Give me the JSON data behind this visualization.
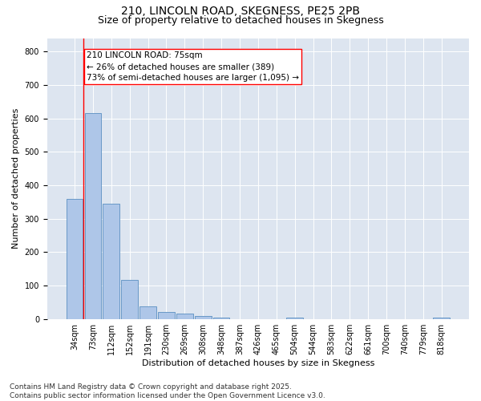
{
  "title1": "210, LINCOLN ROAD, SKEGNESS, PE25 2PB",
  "title2": "Size of property relative to detached houses in Skegness",
  "xlabel": "Distribution of detached houses by size in Skegness",
  "ylabel": "Number of detached properties",
  "categories": [
    "34sqm",
    "73sqm",
    "112sqm",
    "152sqm",
    "191sqm",
    "230sqm",
    "269sqm",
    "308sqm",
    "348sqm",
    "387sqm",
    "426sqm",
    "465sqm",
    "504sqm",
    "544sqm",
    "583sqm",
    "622sqm",
    "661sqm",
    "700sqm",
    "740sqm",
    "779sqm",
    "818sqm"
  ],
  "values": [
    360,
    615,
    345,
    118,
    37,
    20,
    15,
    10,
    5,
    0,
    0,
    0,
    5,
    0,
    0,
    0,
    0,
    0,
    0,
    0,
    5
  ],
  "bar_color": "#aec6e8",
  "bar_edge_color": "#5a8fc2",
  "background_color": "#dde5f0",
  "ylim": [
    0,
    840
  ],
  "yticks": [
    0,
    100,
    200,
    300,
    400,
    500,
    600,
    700,
    800
  ],
  "property_line_x": 0.5,
  "annotation_text": "210 LINCOLN ROAD: 75sqm\n← 26% of detached houses are smaller (389)\n73% of semi-detached houses are larger (1,095) →",
  "footer": "Contains HM Land Registry data © Crown copyright and database right 2025.\nContains public sector information licensed under the Open Government Licence v3.0.",
  "title_fontsize": 10,
  "subtitle_fontsize": 9,
  "axis_label_fontsize": 8,
  "tick_fontsize": 7,
  "annotation_fontsize": 7.5,
  "footer_fontsize": 6.5
}
